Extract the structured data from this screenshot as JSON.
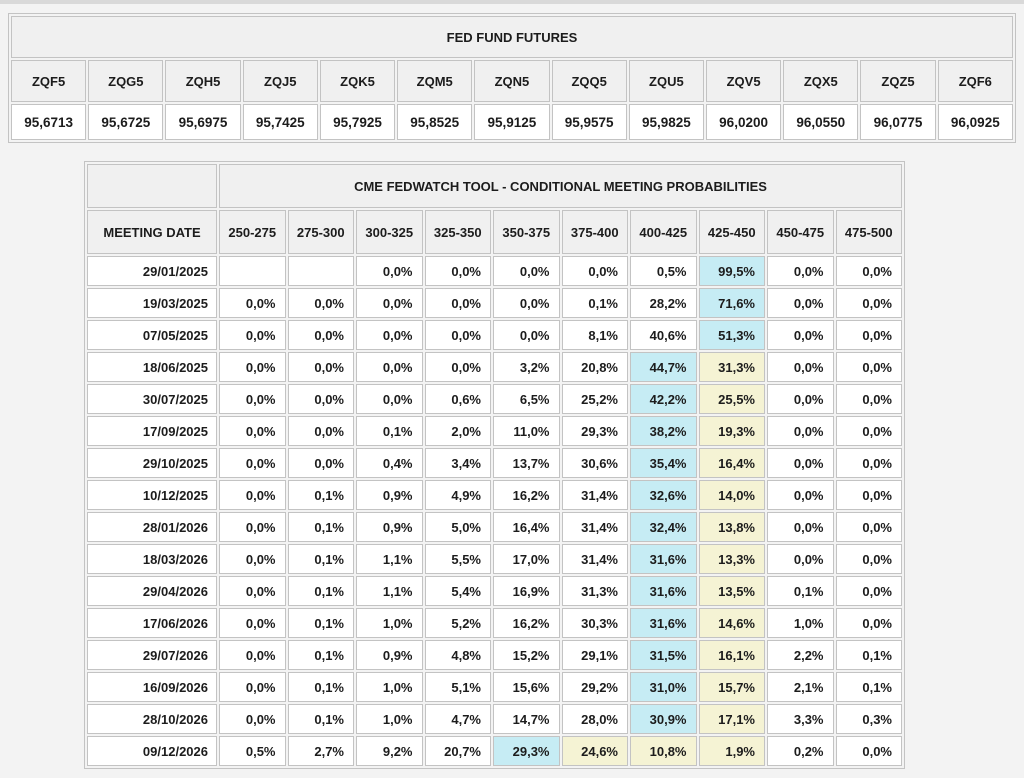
{
  "futures_table": {
    "title": "FED FUND FUTURES",
    "columns": [
      "ZQF5",
      "ZQG5",
      "ZQH5",
      "ZQJ5",
      "ZQK5",
      "ZQM5",
      "ZQN5",
      "ZQQ5",
      "ZQU5",
      "ZQV5",
      "ZQX5",
      "ZQZ5",
      "ZQF6"
    ],
    "values": [
      "95,6713",
      "95,6725",
      "95,6975",
      "95,7425",
      "95,7925",
      "95,8525",
      "95,9125",
      "95,9575",
      "95,9825",
      "96,0200",
      "96,0550",
      "96,0775",
      "96,0925"
    ]
  },
  "fedwatch_table": {
    "title": "CME FEDWATCH TOOL - CONDITIONAL MEETING PROBABILITIES",
    "date_header": "MEETING DATE",
    "range_headers": [
      "250-275",
      "275-300",
      "300-325",
      "325-350",
      "350-375",
      "375-400",
      "400-425",
      "425-450",
      "450-475",
      "475-500"
    ],
    "highlight_colors": {
      "max_probability": "#c6ecf4",
      "hold_range": "#f5f3d4"
    },
    "rows": [
      {
        "date": "29/01/2025",
        "values": [
          "",
          "",
          "0,0%",
          "0,0%",
          "0,0%",
          "0,0%",
          "0,5%",
          "99,5%",
          "0,0%",
          "0,0%"
        ],
        "highlights": [
          null,
          null,
          null,
          null,
          null,
          null,
          null,
          "blue",
          null,
          null
        ]
      },
      {
        "date": "19/03/2025",
        "values": [
          "0,0%",
          "0,0%",
          "0,0%",
          "0,0%",
          "0,0%",
          "0,1%",
          "28,2%",
          "71,6%",
          "0,0%",
          "0,0%"
        ],
        "highlights": [
          null,
          null,
          null,
          null,
          null,
          null,
          null,
          "blue",
          null,
          null
        ]
      },
      {
        "date": "07/05/2025",
        "values": [
          "0,0%",
          "0,0%",
          "0,0%",
          "0,0%",
          "0,0%",
          "8,1%",
          "40,6%",
          "51,3%",
          "0,0%",
          "0,0%"
        ],
        "highlights": [
          null,
          null,
          null,
          null,
          null,
          null,
          null,
          "blue",
          null,
          null
        ]
      },
      {
        "date": "18/06/2025",
        "values": [
          "0,0%",
          "0,0%",
          "0,0%",
          "0,0%",
          "3,2%",
          "20,8%",
          "44,7%",
          "31,3%",
          "0,0%",
          "0,0%"
        ],
        "highlights": [
          null,
          null,
          null,
          null,
          null,
          null,
          "blue",
          "yellow",
          null,
          null
        ]
      },
      {
        "date": "30/07/2025",
        "values": [
          "0,0%",
          "0,0%",
          "0,0%",
          "0,6%",
          "6,5%",
          "25,2%",
          "42,2%",
          "25,5%",
          "0,0%",
          "0,0%"
        ],
        "highlights": [
          null,
          null,
          null,
          null,
          null,
          null,
          "blue",
          "yellow",
          null,
          null
        ]
      },
      {
        "date": "17/09/2025",
        "values": [
          "0,0%",
          "0,0%",
          "0,1%",
          "2,0%",
          "11,0%",
          "29,3%",
          "38,2%",
          "19,3%",
          "0,0%",
          "0,0%"
        ],
        "highlights": [
          null,
          null,
          null,
          null,
          null,
          null,
          "blue",
          "yellow",
          null,
          null
        ]
      },
      {
        "date": "29/10/2025",
        "values": [
          "0,0%",
          "0,0%",
          "0,4%",
          "3,4%",
          "13,7%",
          "30,6%",
          "35,4%",
          "16,4%",
          "0,0%",
          "0,0%"
        ],
        "highlights": [
          null,
          null,
          null,
          null,
          null,
          null,
          "blue",
          "yellow",
          null,
          null
        ]
      },
      {
        "date": "10/12/2025",
        "values": [
          "0,0%",
          "0,1%",
          "0,9%",
          "4,9%",
          "16,2%",
          "31,4%",
          "32,6%",
          "14,0%",
          "0,0%",
          "0,0%"
        ],
        "highlights": [
          null,
          null,
          null,
          null,
          null,
          null,
          "blue",
          "yellow",
          null,
          null
        ]
      },
      {
        "date": "28/01/2026",
        "values": [
          "0,0%",
          "0,1%",
          "0,9%",
          "5,0%",
          "16,4%",
          "31,4%",
          "32,4%",
          "13,8%",
          "0,0%",
          "0,0%"
        ],
        "highlights": [
          null,
          null,
          null,
          null,
          null,
          null,
          "blue",
          "yellow",
          null,
          null
        ]
      },
      {
        "date": "18/03/2026",
        "values": [
          "0,0%",
          "0,1%",
          "1,1%",
          "5,5%",
          "17,0%",
          "31,4%",
          "31,6%",
          "13,3%",
          "0,0%",
          "0,0%"
        ],
        "highlights": [
          null,
          null,
          null,
          null,
          null,
          null,
          "blue",
          "yellow",
          null,
          null
        ]
      },
      {
        "date": "29/04/2026",
        "values": [
          "0,0%",
          "0,1%",
          "1,1%",
          "5,4%",
          "16,9%",
          "31,3%",
          "31,6%",
          "13,5%",
          "0,1%",
          "0,0%"
        ],
        "highlights": [
          null,
          null,
          null,
          null,
          null,
          null,
          "blue",
          "yellow",
          null,
          null
        ]
      },
      {
        "date": "17/06/2026",
        "values": [
          "0,0%",
          "0,1%",
          "1,0%",
          "5,2%",
          "16,2%",
          "30,3%",
          "31,6%",
          "14,6%",
          "1,0%",
          "0,0%"
        ],
        "highlights": [
          null,
          null,
          null,
          null,
          null,
          null,
          "blue",
          "yellow",
          null,
          null
        ]
      },
      {
        "date": "29/07/2026",
        "values": [
          "0,0%",
          "0,1%",
          "0,9%",
          "4,8%",
          "15,2%",
          "29,1%",
          "31,5%",
          "16,1%",
          "2,2%",
          "0,1%"
        ],
        "highlights": [
          null,
          null,
          null,
          null,
          null,
          null,
          "blue",
          "yellow",
          null,
          null
        ]
      },
      {
        "date": "16/09/2026",
        "values": [
          "0,0%",
          "0,1%",
          "1,0%",
          "5,1%",
          "15,6%",
          "29,2%",
          "31,0%",
          "15,7%",
          "2,1%",
          "0,1%"
        ],
        "highlights": [
          null,
          null,
          null,
          null,
          null,
          null,
          "blue",
          "yellow",
          null,
          null
        ]
      },
      {
        "date": "28/10/2026",
        "values": [
          "0,0%",
          "0,1%",
          "1,0%",
          "4,7%",
          "14,7%",
          "28,0%",
          "30,9%",
          "17,1%",
          "3,3%",
          "0,3%"
        ],
        "highlights": [
          null,
          null,
          null,
          null,
          null,
          null,
          "blue",
          "yellow",
          null,
          null
        ]
      },
      {
        "date": "09/12/2026",
        "values": [
          "0,5%",
          "2,7%",
          "9,2%",
          "20,7%",
          "29,3%",
          "24,6%",
          "10,8%",
          "1,9%",
          "0,2%",
          "0,0%"
        ],
        "highlights": [
          null,
          null,
          null,
          null,
          "blue",
          "yellow",
          "yellow",
          "yellow",
          null,
          null
        ]
      }
    ]
  }
}
